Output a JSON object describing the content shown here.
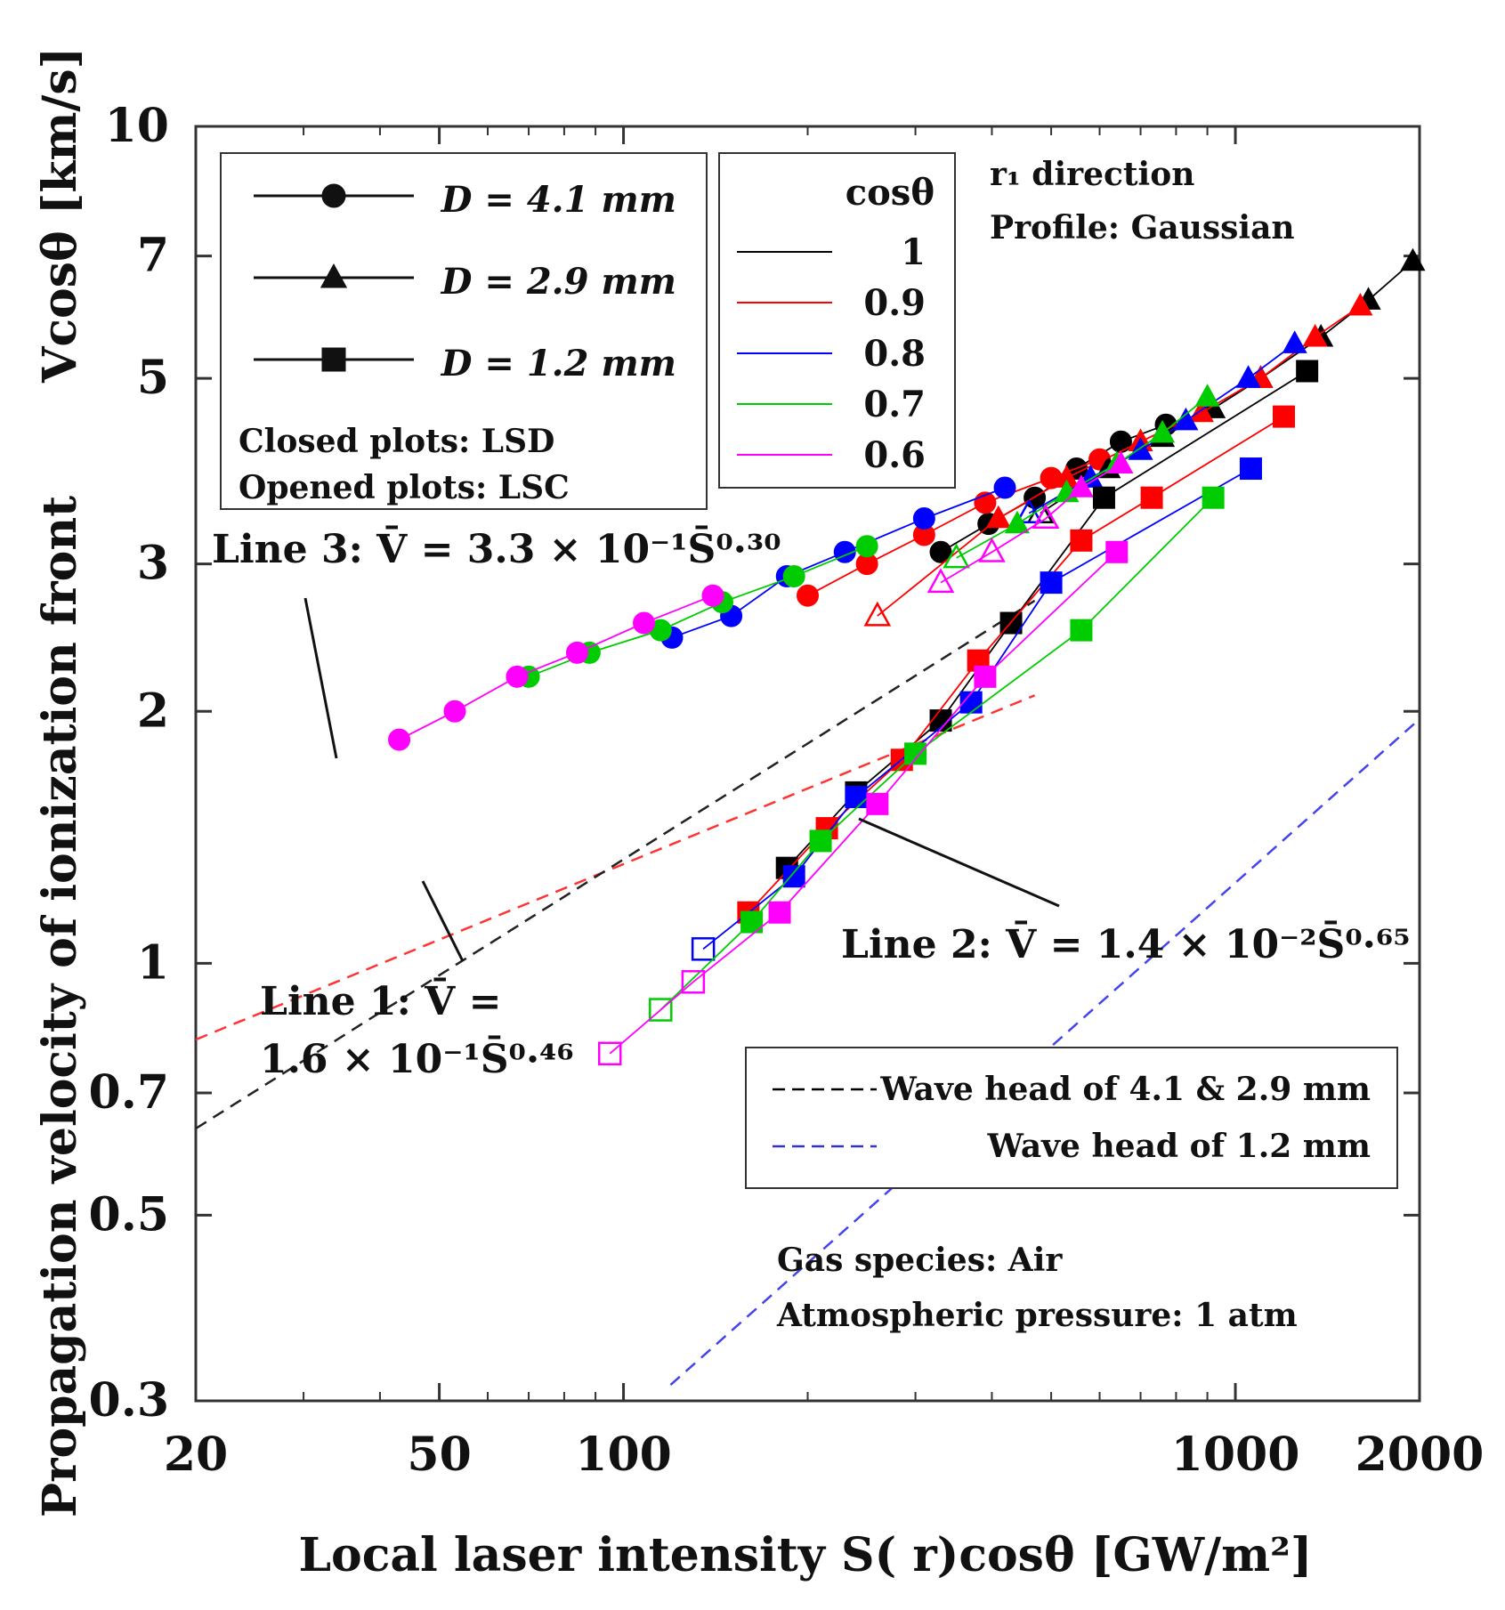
{
  "chart_data": {
    "type": "scatter",
    "xscale": "log",
    "yscale": "log",
    "xlim": [
      20,
      2000
    ],
    "ylim": [
      0.3,
      10
    ],
    "xticks": [
      20,
      50,
      100,
      1000,
      2000
    ],
    "xtick_labels": [
      "20",
      "50",
      "100",
      "1000",
      "2000"
    ],
    "yticks": [
      0.3,
      0.5,
      0.7,
      1,
      2,
      3,
      5,
      7,
      10
    ],
    "ytick_labels": [
      "0.3",
      "0.5",
      "0.7",
      "1",
      "2",
      "3",
      "5",
      "7",
      "10"
    ],
    "xlabel": "Local laser intensity  S( r)cosθ [GW/m²]",
    "ylabel_part1": "Propagation velocity of ionization front",
    "ylabel_part2": "Vcosθ [km/s]",
    "annotations": {
      "r1": "r₁ direction",
      "profile": "Profile: Gaussian",
      "line3": "Line 3: V̄ = 3.3 × 10⁻¹S̄⁰·³⁰",
      "line2": "Line 2: V̄ = 1.4 × 10⁻²S̄⁰·⁶⁵",
      "line1_a": "Line 1: V̄ =",
      "line1_b": "1.6 × 10⁻¹S̄⁰·⁴⁶",
      "gas": "Gas species: Air",
      "pressure": "Atmospheric pressure: 1 atm"
    },
    "legend_marker": {
      "entries": [
        {
          "marker": "circle",
          "label": "D = 4.1 mm"
        },
        {
          "marker": "triangle",
          "label": "D = 2.9 mm"
        },
        {
          "marker": "square",
          "label": "D = 1.2 mm"
        }
      ],
      "note1": "Closed plots: LSD",
      "note2": "Opened plots: LSC"
    },
    "legend_color": {
      "title": "cosθ",
      "entries": [
        {
          "label": "1",
          "color": "#000000"
        },
        {
          "label": "0.9",
          "color": "#ff0000"
        },
        {
          "label": "0.8",
          "color": "#0000ff"
        },
        {
          "label": "0.7",
          "color": "#00cc00"
        },
        {
          "label": "0.6",
          "color": "#ff00ff"
        }
      ]
    },
    "legend_lines": [
      {
        "label": "Wave head of 4.1 & 2.9 mm",
        "color": "#000000"
      },
      {
        "label": "Wave head of 1.2 mm",
        "color": "#3333cc"
      }
    ],
    "fit_lines": [
      {
        "name": "Line 3",
        "a": 0.33,
        "b": 0.3,
        "color": "#ff3333",
        "x": [
          20,
          470
        ]
      },
      {
        "name": "Line 1",
        "a": 0.16,
        "b": 0.46,
        "color": "#222222",
        "x": [
          20,
          470
        ]
      },
      {
        "name": "Line 2",
        "a": 0.014,
        "b": 0.65,
        "color": "#4444ee",
        "x": [
          22,
          2000
        ]
      }
    ],
    "series": [
      {
        "name": "D=4.1mm cos=1",
        "marker": "circle",
        "color": "#000000",
        "x": [
          330,
          395,
          470,
          550,
          650,
          770
        ],
        "y": [
          3.1,
          3.35,
          3.6,
          3.9,
          4.2,
          4.4
        ],
        "open": [
          false,
          false,
          false,
          false,
          false,
          false
        ]
      },
      {
        "name": "D=4.1mm cos=0.9",
        "marker": "circle",
        "color": "#ff0000",
        "x": [
          200,
          250,
          310,
          390,
          500,
          600
        ],
        "y": [
          2.75,
          3.0,
          3.25,
          3.55,
          3.8,
          4.0
        ],
        "open": [
          false,
          false,
          false,
          false,
          false,
          false
        ]
      },
      {
        "name": "D=4.1mm cos=0.8",
        "marker": "circle",
        "color": "#0000ff",
        "x": [
          120,
          150,
          185,
          230,
          310,
          420
        ],
        "y": [
          2.45,
          2.6,
          2.9,
          3.1,
          3.4,
          3.7
        ],
        "open": [
          false,
          false,
          false,
          false,
          false,
          false
        ]
      },
      {
        "name": "D=4.1mm cos=0.7",
        "marker": "circle",
        "color": "#00cc00",
        "x": [
          70,
          88,
          115,
          145,
          190,
          250
        ],
        "y": [
          2.2,
          2.35,
          2.5,
          2.7,
          2.9,
          3.15
        ],
        "open": [
          false,
          false,
          false,
          false,
          false,
          false
        ]
      },
      {
        "name": "D=4.1mm cos=0.6",
        "marker": "circle",
        "color": "#ff00ff",
        "x": [
          43,
          53,
          67,
          84,
          108,
          140
        ],
        "y": [
          1.85,
          2.0,
          2.2,
          2.35,
          2.55,
          2.75
        ],
        "open": [
          false,
          false,
          false,
          false,
          false,
          false
        ]
      },
      {
        "name": "D=2.9mm cos=1",
        "marker": "triangle",
        "color": "#000000",
        "x": [
          480,
          620,
          760,
          920,
          1100,
          1380,
          1650,
          1950
        ],
        "y": [
          3.45,
          3.9,
          4.25,
          4.6,
          5.0,
          5.6,
          6.2,
          6.9
        ],
        "open": [
          true,
          false,
          false,
          false,
          false,
          false,
          false,
          false
        ]
      },
      {
        "name": "D=2.9mm cos=0.9",
        "marker": "triangle",
        "color": "#ff0000",
        "x": [
          260,
          410,
          530,
          700,
          880,
          1100,
          1350,
          1600
        ],
        "y": [
          2.6,
          3.4,
          3.8,
          4.2,
          4.55,
          5.0,
          5.6,
          6.1
        ],
        "open": [
          true,
          false,
          false,
          false,
          false,
          false,
          false,
          false
        ]
      },
      {
        "name": "D=2.9mm cos=0.8",
        "marker": "triangle",
        "color": "#0000ff",
        "x": [
          460,
          580,
          700,
          830,
          1050,
          1250
        ],
        "y": [
          3.45,
          3.8,
          4.1,
          4.45,
          5.0,
          5.5
        ],
        "open": [
          true,
          false,
          false,
          false,
          false,
          false
        ]
      },
      {
        "name": "D=2.9mm cos=0.7",
        "marker": "triangle",
        "color": "#00cc00",
        "x": [
          350,
          440,
          530,
          640,
          760,
          900
        ],
        "y": [
          3.05,
          3.35,
          3.65,
          3.95,
          4.3,
          4.75
        ],
        "open": [
          true,
          false,
          false,
          false,
          false,
          false
        ]
      },
      {
        "name": "D=2.9mm cos=0.6",
        "marker": "triangle",
        "color": "#ff00ff",
        "x": [
          330,
          400,
          490,
          560,
          650
        ],
        "y": [
          2.85,
          3.1,
          3.4,
          3.7,
          3.95
        ],
        "open": [
          true,
          true,
          true,
          false,
          false
        ]
      },
      {
        "name": "D=1.2mm cos=1",
        "marker": "square",
        "color": "#000000",
        "x": [
          185,
          240,
          330,
          430,
          610,
          1310
        ],
        "y": [
          1.3,
          1.6,
          1.95,
          2.55,
          3.6,
          5.1
        ],
        "open": [
          false,
          false,
          false,
          false,
          false,
          false
        ]
      },
      {
        "name": "D=1.2mm cos=0.9",
        "marker": "square",
        "color": "#ff0000",
        "x": [
          160,
          215,
          285,
          380,
          560,
          730,
          1200
        ],
        "y": [
          1.15,
          1.45,
          1.75,
          2.3,
          3.2,
          3.6,
          4.5
        ],
        "open": [
          false,
          false,
          false,
          false,
          false,
          false,
          false
        ]
      },
      {
        "name": "D=1.2mm cos=0.8",
        "marker": "square",
        "color": "#0000ff",
        "x": [
          135,
          190,
          240,
          370,
          500,
          1060
        ],
        "y": [
          1.04,
          1.27,
          1.58,
          2.05,
          2.85,
          3.9
        ],
        "open": [
          true,
          false,
          false,
          false,
          false,
          false
        ]
      },
      {
        "name": "D=1.2mm cos=0.7",
        "marker": "square",
        "color": "#00cc00",
        "x": [
          115,
          162,
          210,
          300,
          560,
          920
        ],
        "y": [
          0.88,
          1.12,
          1.4,
          1.78,
          2.5,
          3.6
        ],
        "open": [
          true,
          false,
          false,
          false,
          false,
          false
        ]
      },
      {
        "name": "D=1.2mm cos=0.6",
        "marker": "square",
        "color": "#ff00ff",
        "x": [
          95,
          130,
          180,
          260,
          390,
          640
        ],
        "y": [
          0.78,
          0.95,
          1.15,
          1.55,
          2.2,
          3.1
        ],
        "open": [
          true,
          true,
          false,
          false,
          false,
          false
        ]
      }
    ]
  }
}
